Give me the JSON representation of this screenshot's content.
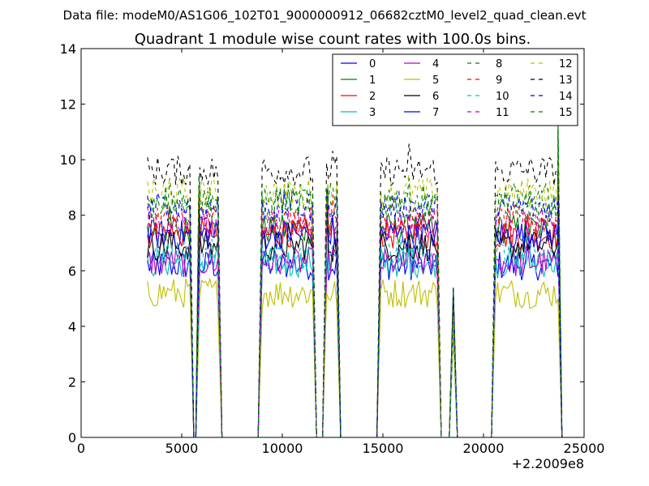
{
  "figure": {
    "suptitle": "Data file: modeM0/AS1G06_102T01_9000000912_06682cztM0_level2_quad_clean.evt"
  },
  "chart_data": {
    "type": "line",
    "title": "Quadrant 1 module wise count rates with 100.0s bins.",
    "xlabel": "",
    "ylabel": "",
    "x_offset_label": "+2.2009e8",
    "xlim": [
      0,
      25000
    ],
    "ylim": [
      0,
      14
    ],
    "x_ticks": [
      0,
      5000,
      10000,
      15000,
      20000,
      25000
    ],
    "y_ticks": [
      0,
      2,
      4,
      6,
      8,
      10,
      12,
      14
    ],
    "legend_position": "top-right",
    "legend_columns": 4,
    "segments": [
      {
        "start": 3300,
        "end": 5400,
        "bins": 22
      },
      {
        "start": 5900,
        "end": 6800,
        "bins": 10
      },
      {
        "start": 9000,
        "end": 11500,
        "bins": 26
      },
      {
        "start": 12200,
        "end": 12700,
        "bins": 6
      },
      {
        "start": 14900,
        "end": 17700,
        "bins": 29
      },
      {
        "start": 18500,
        "end": 18500,
        "bins": 1
      },
      {
        "start": 20600,
        "end": 23700,
        "bins": 32
      }
    ],
    "spikes": [
      [
        5850,
        9.8
      ],
      [
        12250,
        9.4
      ],
      [
        18500,
        5.4
      ],
      [
        23700,
        11.8
      ]
    ],
    "series": [
      {
        "name": "0",
        "color": "#0000ff",
        "style": "solid",
        "level": 6.2
      },
      {
        "name": "1",
        "color": "#008000",
        "style": "solid",
        "level": 7.5
      },
      {
        "name": "2",
        "color": "#ff0000",
        "style": "solid",
        "level": 7.3
      },
      {
        "name": "3",
        "color": "#00bfbf",
        "style": "solid",
        "level": 6.3
      },
      {
        "name": "4",
        "color": "#bf00bf",
        "style": "solid",
        "level": 6.3
      },
      {
        "name": "5",
        "color": "#bfbf00",
        "style": "solid",
        "level": 5.2
      },
      {
        "name": "6",
        "color": "#000000",
        "style": "solid",
        "level": 6.9
      },
      {
        "name": "7",
        "color": "#0000ff",
        "style": "solid",
        "level": 7.3
      },
      {
        "name": "8",
        "color": "#008000",
        "style": "dashed",
        "level": 8.3
      },
      {
        "name": "9",
        "color": "#ff0000",
        "style": "dashed",
        "level": 7.8
      },
      {
        "name": "10",
        "color": "#00bfbf",
        "style": "dashed",
        "level": 6.6
      },
      {
        "name": "11",
        "color": "#bf00bf",
        "style": "dashed",
        "level": 7.7
      },
      {
        "name": "12",
        "color": "#bfbf00",
        "style": "dashed",
        "level": 8.8
      },
      {
        "name": "13",
        "color": "#000000",
        "style": "dashed",
        "level": 9.6
      },
      {
        "name": "14",
        "color": "#0000ff",
        "style": "dashed",
        "level": 8.3
      },
      {
        "name": "15",
        "color": "#008000",
        "style": "dashed",
        "level": 8.6
      }
    ]
  }
}
